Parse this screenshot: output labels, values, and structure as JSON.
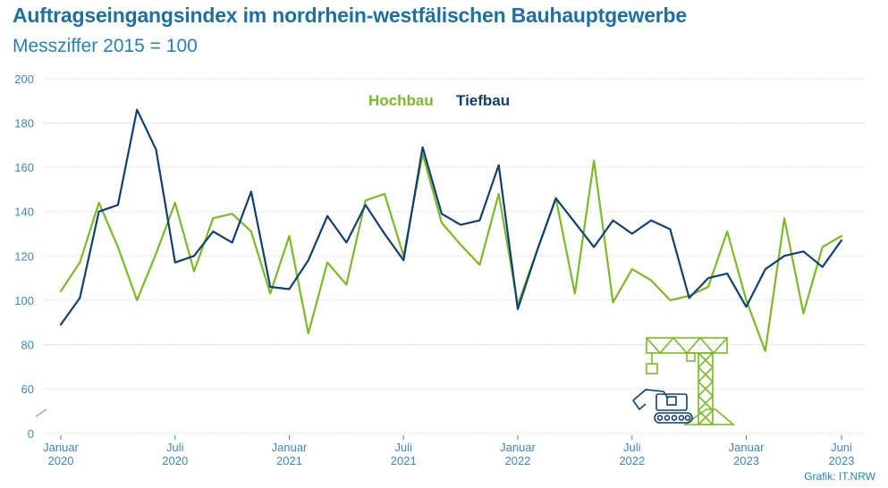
{
  "title": "Auftragseingangsindex im nordrhein-westfälischen Bauhauptgewerbe",
  "subtitle": "Messziffer 2015 = 100",
  "credit": "Grafik: IT.NRW",
  "decoration": "crane-and-excavator-icon",
  "colors": {
    "hochbau": "#7ab929",
    "tiefbau": "#123f70",
    "axis_text": "#3f86b8",
    "title": "#1f6f9f",
    "grid": "#cfcfcf"
  },
  "chart_data": {
    "type": "line",
    "title": "Auftragseingangsindex im nordrhein-westfälischen Bauhauptgewerbe",
    "subtitle": "Messziffer 2015 = 100",
    "xlabel": "",
    "ylabel": "",
    "ylim": [
      0,
      200
    ],
    "y_axis_break": "between 0 and 60",
    "y_ticks": [
      "0",
      "60",
      "80",
      "100",
      "120",
      "140",
      "160",
      "180",
      "200"
    ],
    "x_ticks": [
      {
        "month": 0,
        "line1": "Januar",
        "line2": "2020"
      },
      {
        "month": 6,
        "line1": "Juli",
        "line2": "2020"
      },
      {
        "month": 12,
        "line1": "Januar",
        "line2": "2021"
      },
      {
        "month": 18,
        "line1": "Juli",
        "line2": "2021"
      },
      {
        "month": 24,
        "line1": "Januar",
        "line2": "2022"
      },
      {
        "month": 30,
        "line1": "Juli",
        "line2": "2022"
      },
      {
        "month": 36,
        "line1": "Januar",
        "line2": "2023"
      },
      {
        "month": 41,
        "line1": "Juni",
        "line2": "2023"
      }
    ],
    "x": [
      "2020-01",
      "2020-02",
      "2020-03",
      "2020-04",
      "2020-05",
      "2020-06",
      "2020-07",
      "2020-08",
      "2020-09",
      "2020-10",
      "2020-11",
      "2020-12",
      "2021-01",
      "2021-02",
      "2021-03",
      "2021-04",
      "2021-05",
      "2021-06",
      "2021-07",
      "2021-08",
      "2021-09",
      "2021-10",
      "2021-11",
      "2021-12",
      "2022-01",
      "2022-02",
      "2022-03",
      "2022-04",
      "2022-05",
      "2022-06",
      "2022-07",
      "2022-08",
      "2022-09",
      "2022-10",
      "2022-11",
      "2022-12",
      "2023-01",
      "2023-02",
      "2023-03",
      "2023-04",
      "2023-05",
      "2023-06"
    ],
    "legend": {
      "placement": "top-center"
    },
    "grid": true,
    "series": [
      {
        "name": "Hochbau",
        "values": [
          104,
          117,
          144,
          124,
          100,
          121,
          144,
          113,
          137,
          139,
          131,
          103,
          129,
          85,
          117,
          107,
          145,
          148,
          120,
          166,
          135,
          125,
          116,
          148,
          98,
          122,
          146,
          103,
          163,
          99,
          114,
          109,
          100,
          102,
          106,
          131,
          100,
          77,
          137,
          94,
          124,
          129
        ]
      },
      {
        "name": "Tiefbau",
        "values": [
          89,
          101,
          140,
          143,
          186,
          168,
          117,
          120,
          131,
          126,
          149,
          106,
          105,
          118,
          138,
          126,
          143,
          130,
          118,
          169,
          139,
          134,
          136,
          161,
          96,
          122,
          146,
          135,
          124,
          136,
          130,
          136,
          132,
          101,
          110,
          112,
          97,
          114,
          120,
          122,
          115,
          127
        ]
      }
    ]
  }
}
